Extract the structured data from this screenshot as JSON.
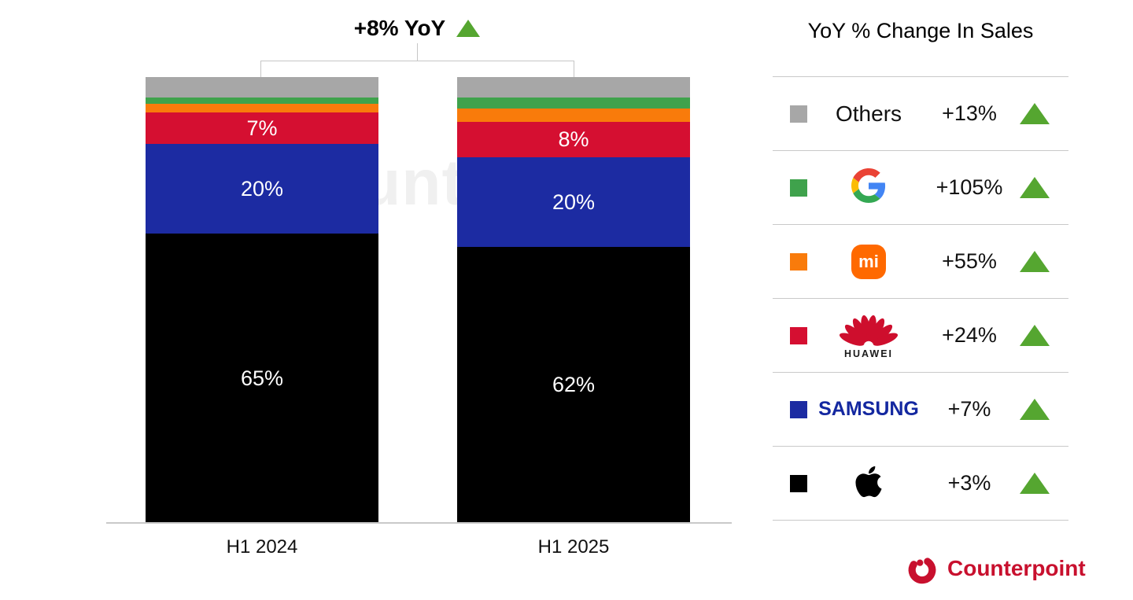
{
  "header": {
    "title": "+8% YoY",
    "direction": "up"
  },
  "watermark": "Counterpoint",
  "chart_data": {
    "type": "stacked-bar",
    "title": "+8% YoY",
    "categories": [
      "H1 2024",
      "H1 2025"
    ],
    "unit": "percent share of sales",
    "ylim": [
      0,
      100
    ],
    "grid": false,
    "legend_position": "right",
    "stack_order_bottom_to_top": [
      "Apple",
      "Samsung",
      "Huawei",
      "Xiaomi",
      "Google",
      "Others"
    ],
    "series": [
      {
        "name": "Apple",
        "color": "#000000",
        "values": [
          65,
          62
        ],
        "labels": [
          "65%",
          "62%"
        ]
      },
      {
        "name": "Samsung",
        "color": "#1C2BA2",
        "values": [
          20,
          20
        ],
        "labels": [
          "20%",
          "20%"
        ]
      },
      {
        "name": "Huawei",
        "color": "#D50F31",
        "values": [
          7,
          8
        ],
        "labels": [
          "7%",
          "8%"
        ]
      },
      {
        "name": "Xiaomi",
        "color": "#F97B0B",
        "values": [
          2,
          3
        ],
        "labels": [
          "",
          ""
        ]
      },
      {
        "name": "Google",
        "color": "#3FA24C",
        "values": [
          1.5,
          2.5
        ],
        "labels": [
          "",
          ""
        ]
      },
      {
        "name": "Others",
        "color": "#A7A7A7",
        "values": [
          4.5,
          4.5
        ],
        "labels": [
          "",
          ""
        ]
      }
    ]
  },
  "legend": {
    "title": "YoY % Change In Sales",
    "up_color": "#55A630",
    "rows": [
      {
        "brand": "Others",
        "logo": "others-text",
        "logo_text": "Others",
        "swatch_color": "#A7A7A7",
        "change": "+13%",
        "direction": "up"
      },
      {
        "brand": "Google",
        "logo": "google-g",
        "logo_text": "",
        "swatch_color": "#3FA24C",
        "change": "+105%",
        "direction": "up"
      },
      {
        "brand": "Xiaomi",
        "logo": "xiaomi-mi",
        "logo_text": "mi",
        "swatch_color": "#F97B0B",
        "change": "+55%",
        "direction": "up"
      },
      {
        "brand": "Huawei",
        "logo": "huawei-flower",
        "logo_text": "HUAWEI",
        "swatch_color": "#D50F31",
        "change": "+24%",
        "direction": "up"
      },
      {
        "brand": "Samsung",
        "logo": "samsung-wordmark",
        "logo_text": "SAMSUNG",
        "swatch_color": "#1C2BA2",
        "change": "+7%",
        "direction": "up"
      },
      {
        "brand": "Apple",
        "logo": "apple-mark",
        "logo_text": "",
        "swatch_color": "#000000",
        "change": "+3%",
        "direction": "up"
      }
    ]
  },
  "footer": {
    "brand": "Counterpoint",
    "color": "#C8102E"
  },
  "colors": {
    "up_green": "#55A630",
    "divider": "#c9c9c9",
    "axis_line": "#c9c9c9",
    "watermark": "#f0f0f0",
    "samsung_wordmark": "#1428A0",
    "xiaomi_badge": "#FF6900",
    "huawei_logo": "#CE0E2D"
  }
}
